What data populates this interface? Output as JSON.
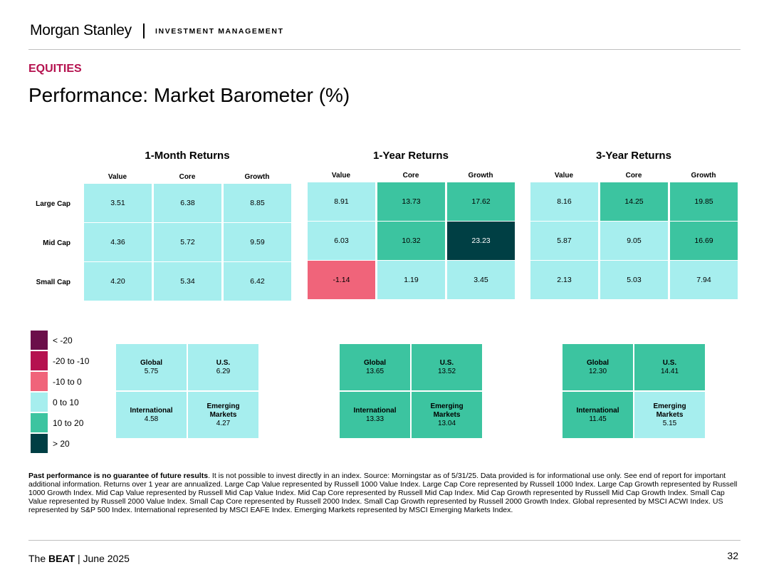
{
  "header": {
    "brand": "Morgan Stanley",
    "subtitle": "INVESTMENT MANAGEMENT"
  },
  "section_label": "EQUITIES",
  "page_title": "Performance: Market Barometer (%)",
  "colors": {
    "lt_minus20": "#6b0f4a",
    "minus20_to_minus10": "#b5124f",
    "minus10_to_0": "#f0647a",
    "0_to_10": "#a6eeee",
    "10_to_20": "#3cc4a0",
    "gt_20": "#003f44"
  },
  "legend": [
    {
      "label": "< -20",
      "color": "#6b0f4a"
    },
    {
      "label": "-20 to -10",
      "color": "#b5124f"
    },
    {
      "label": "-10 to 0",
      "color": "#f0647a"
    },
    {
      "label": "0 to 10",
      "color": "#a6eeee"
    },
    {
      "label": "10 to 20",
      "color": "#3cc4a0"
    },
    {
      "label": "> 20",
      "color": "#003f44"
    }
  ],
  "chart_data": {
    "type": "heatmap",
    "columns": [
      "Value",
      "Core",
      "Growth"
    ],
    "rows": [
      "Large Cap",
      "Mid Cap",
      "Small Cap"
    ],
    "panels": [
      {
        "title": "1-Month Returns",
        "values": [
          [
            "3.51",
            "6.38",
            "8.85"
          ],
          [
            "4.36",
            "5.72",
            "9.59"
          ],
          [
            "4.20",
            "5.34",
            "6.42"
          ]
        ],
        "regions": [
          {
            "label": "Global",
            "value": "5.75"
          },
          {
            "label": "U.S.",
            "value": "6.29"
          },
          {
            "label": "International",
            "value": "4.58"
          },
          {
            "label": "Emerging Markets",
            "value": "4.27"
          }
        ]
      },
      {
        "title": "1-Year Returns",
        "values": [
          [
            "8.91",
            "13.73",
            "17.62"
          ],
          [
            "6.03",
            "10.32",
            "23.23"
          ],
          [
            "-1.14",
            "1.19",
            "3.45"
          ]
        ],
        "regions": [
          {
            "label": "Global",
            "value": "13.65"
          },
          {
            "label": "U.S.",
            "value": "13.52"
          },
          {
            "label": "International",
            "value": "13.33"
          },
          {
            "label": "Emerging Markets",
            "value": "13.04"
          }
        ]
      },
      {
        "title": "3-Year Returns",
        "values": [
          [
            "8.16",
            "14.25",
            "19.85"
          ],
          [
            "5.87",
            "9.05",
            "16.69"
          ],
          [
            "2.13",
            "5.03",
            "7.94"
          ]
        ],
        "regions": [
          {
            "label": "Global",
            "value": "12.30"
          },
          {
            "label": "U.S.",
            "value": "14.41"
          },
          {
            "label": "International",
            "value": "11.45"
          },
          {
            "label": "Emerging Markets",
            "value": "5.15"
          }
        ]
      }
    ]
  },
  "footnote": {
    "bold": "Past performance is no guarantee of future results",
    "text": ". It is not possible to invest directly in an index. Source: Morningstar as of 5/31/25. Data provided is for informational use only. See end of report for important additional information. Returns over 1 year are annualized. Large Cap Value represented by Russell 1000 Value Index. Large Cap Core represented by Russell 1000 Index. Large Cap Growth represented by Russell 1000 Growth Index. Mid Cap Value represented by Russell Mid Cap Value Index. Mid Cap Core represented by Russell Mid Cap Index. Mid Cap Growth represented by Russell Mid Cap Growth Index. Small Cap Value represented by Russell 2000 Value Index. Small Cap Core represented by Russell 2000 Index. Small Cap Growth represented by Russell 2000 Growth Index. Global represented by MSCI ACWI Index. US represented by S&P 500 Index. International represented by MSCI EAFE Index. Emerging Markets represented by MSCI Emerging Markets Index."
  },
  "footer": {
    "publication_prefix": "The ",
    "publication_bold": "BEAT",
    "publication_suffix": " | June 2025",
    "page_number": "32"
  }
}
